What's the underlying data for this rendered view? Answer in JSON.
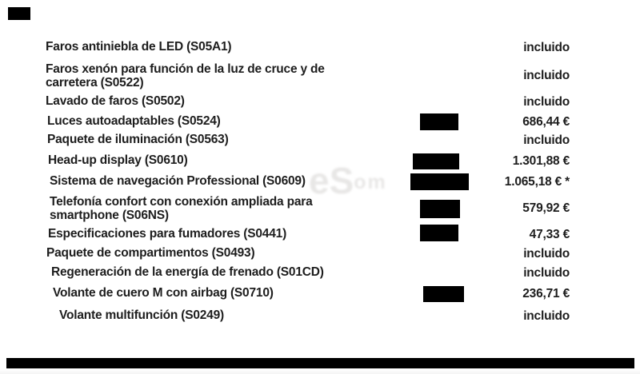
{
  "page": {
    "background": "#ffffff",
    "text_color": "#1d1d1d",
    "redaction_color": "#000000",
    "currency_symbol": "€",
    "included_label": "incluido"
  },
  "watermark": {
    "text_large": "eS",
    "text_small": "om"
  },
  "redaction_marks": {
    "header_mark": "redacted-block",
    "footer_bar": "redacted-block"
  },
  "rows": [
    {
      "label_lines": [
        "Faros antiniebla de LED (S05A1)"
      ],
      "price": "incluido",
      "redacted": false
    },
    {
      "label_lines": [
        "Faros xenón para función de la luz de cruce y de",
        "carretera (S0522)"
      ],
      "price": "incluido",
      "redacted": false
    },
    {
      "label_lines": [
        "Lavado de faros (S0502)"
      ],
      "price": "incluido",
      "redacted": false
    },
    {
      "label_lines": [
        "Luces autoadaptables (S0524)"
      ],
      "price": "686,44 €",
      "redacted": true
    },
    {
      "label_lines": [
        "Paquete de iluminación (S0563)"
      ],
      "price": "incluido",
      "redacted": false
    },
    {
      "label_lines": [
        "Head-up display (S0610)"
      ],
      "price": "1.301,88 €",
      "redacted": true
    },
    {
      "label_lines": [
        "Sistema de navegación Professional (S0609)"
      ],
      "price": "1.065,18 € *",
      "redacted": true
    },
    {
      "label_lines": [
        "Telefonía confort con conexión ampliada para",
        "smartphone (S06NS)"
      ],
      "price": "579,92 €",
      "redacted": true
    },
    {
      "label_lines": [
        "Especificaciones para fumadores (S0441)"
      ],
      "price": "47,33 €",
      "redacted": true
    },
    {
      "label_lines": [
        "Paquete de compartimentos (S0493)"
      ],
      "price": "incluido",
      "redacted": false
    },
    {
      "label_lines": [
        "Regeneración de la energía de frenado (S01CD)"
      ],
      "price": "incluido",
      "redacted": false
    },
    {
      "label_lines": [
        "Volante de cuero M con airbag (S0710)"
      ],
      "price": "236,71 €",
      "redacted": true
    },
    {
      "label_lines": [
        "Volante multifunción (S0249)"
      ],
      "price": "incluido",
      "redacted": false
    }
  ]
}
